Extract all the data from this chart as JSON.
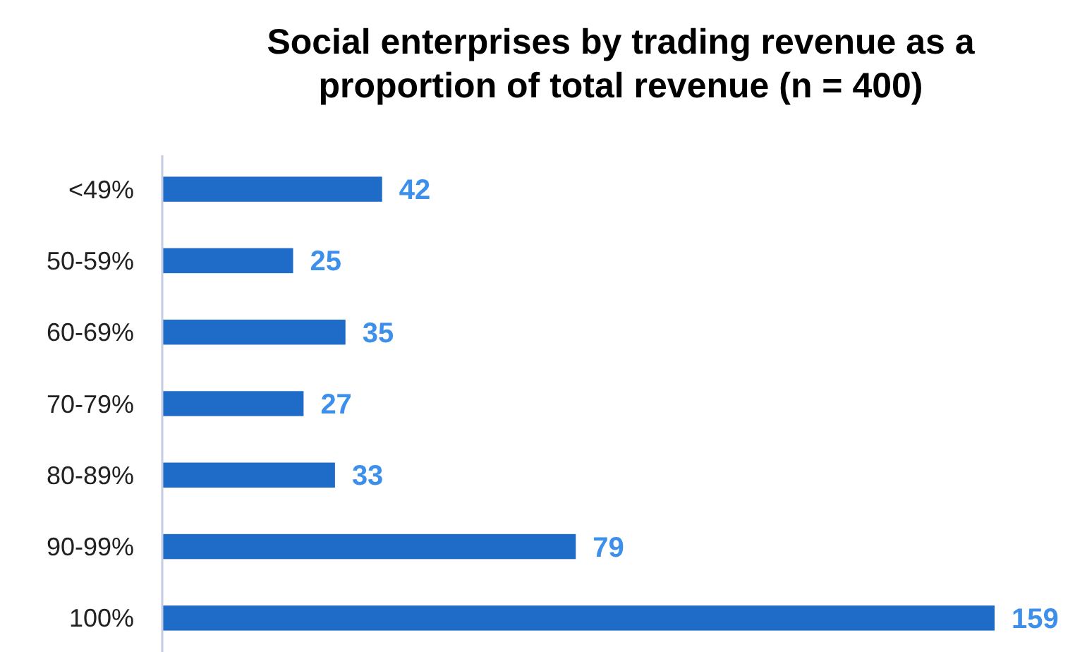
{
  "chart_data": {
    "type": "bar",
    "orientation": "horizontal",
    "title": "Social enterprises by trading revenue as a proportion of total revenue (n = 400)",
    "categories": [
      "<49%",
      "50-59%",
      "60-69%",
      "70-79%",
      "80-89%",
      "90-99%",
      "100%"
    ],
    "values": [
      42,
      25,
      35,
      27,
      33,
      79,
      159
    ],
    "color": "#1f6bc8",
    "data_labels": true
  }
}
